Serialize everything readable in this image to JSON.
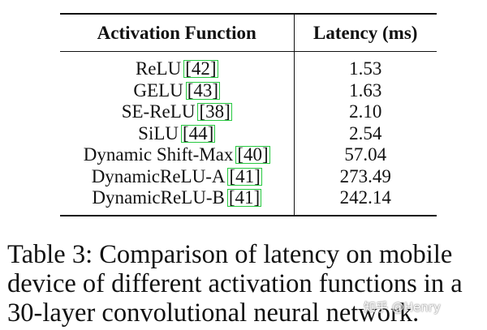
{
  "table": {
    "headers": [
      "Activation Function",
      "Latency (ms)"
    ],
    "rows": [
      {
        "name": "ReLU",
        "cite": "[42]",
        "latency": "1.53"
      },
      {
        "name": "GELU",
        "cite": "[43]",
        "latency": "1.63"
      },
      {
        "name": "SE-ReLU",
        "cite": "[38]",
        "latency": "2.10"
      },
      {
        "name": "SiLU",
        "cite": "[44]",
        "latency": "2.54"
      },
      {
        "name": "Dynamic Shift-Max",
        "cite": "[40]",
        "latency": "57.04"
      },
      {
        "name": "DynamicReLU-A",
        "cite": "[41]",
        "latency": "273.49"
      },
      {
        "name": "DynamicReLU-B",
        "cite": "[41]",
        "latency": "242.14"
      }
    ]
  },
  "caption": {
    "line1": "Table 3: Comparison of latency on mobile",
    "line2": "device of different activation functions in a",
    "line3": "30-layer convolutional neural network."
  },
  "watermark": "知乎 @Henry"
}
